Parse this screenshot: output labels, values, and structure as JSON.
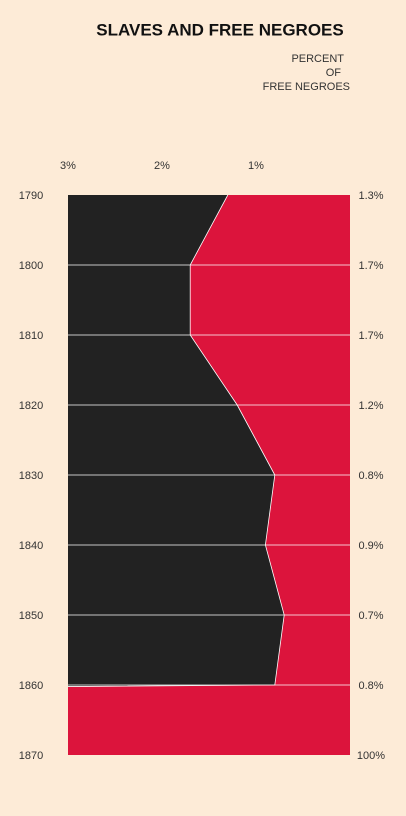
{
  "chart_data": {
    "type": "area",
    "title": "SLAVES AND FREE NEGROES",
    "subtitle": [
      "PERCENT",
      "OF",
      "FREE NEGROES"
    ],
    "categories": [
      1790,
      1800,
      1810,
      1820,
      1830,
      1840,
      1850,
      1860,
      1870
    ],
    "values": [
      1.3,
      1.7,
      1.7,
      1.2,
      0.8,
      0.9,
      0.7,
      0.8,
      100
    ],
    "value_labels": [
      "1.3%",
      "1.7%",
      "1.7%",
      "1.2%",
      "0.8%",
      "0.9%",
      "0.7%",
      "0.8%",
      "100%"
    ],
    "color": "#dc143c",
    "base_color": "#222222",
    "xlim": [
      3,
      0
    ],
    "xticks": [
      {
        "value": 3,
        "label": "3%"
      },
      {
        "value": 2,
        "label": "2%"
      },
      {
        "value": 1,
        "label": "1%"
      }
    ]
  }
}
